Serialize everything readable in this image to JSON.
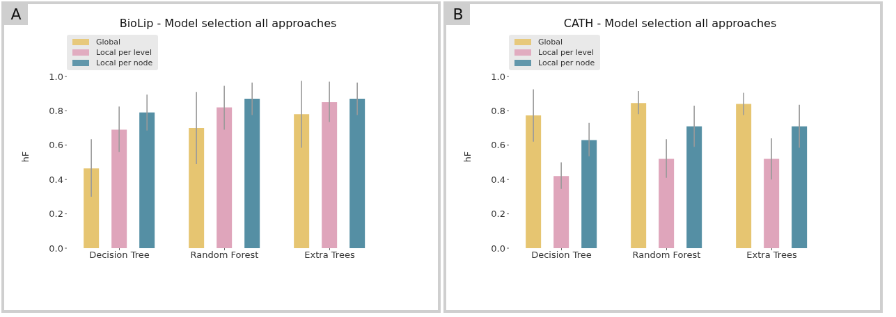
{
  "chart_data": [
    {
      "type": "bar",
      "title": "BioLip - Model selection all approaches",
      "ylabel": "hF",
      "annotations": [
        "A"
      ],
      "categories": [
        "Decision Tree",
        "Random Forest",
        "Extra Trees"
      ],
      "ylim": [
        0,
        1
      ],
      "yticks": [
        {
          "value": 0,
          "label": "0.0"
        },
        {
          "value": 0.2,
          "label": "0.2"
        },
        {
          "value": 0.4,
          "label": "0.4"
        },
        {
          "value": 0.6,
          "label": "0.6"
        },
        {
          "value": 0.8,
          "label": "0.8"
        },
        {
          "value": 1,
          "label": "1.0"
        }
      ],
      "grid": false,
      "legend": "top left",
      "series": [
        {
          "name": "Global",
          "color": "#e6c571",
          "values": [
            0.465,
            0.7,
            0.78
          ],
          "errors": [
            [
              0.3,
              0.635
            ],
            [
              0.49,
              0.91
            ],
            [
              0.585,
              0.975
            ]
          ]
        },
        {
          "name": "Local per level",
          "color": "#dfa5bb",
          "values": [
            0.69,
            0.82,
            0.85
          ],
          "errors": [
            [
              0.56,
              0.825
            ],
            [
              0.69,
              0.945
            ],
            [
              0.735,
              0.97
            ]
          ]
        },
        {
          "name": "Local per node",
          "color": "#558fa4",
          "values": [
            0.79,
            0.87,
            0.87
          ],
          "errors": [
            [
              0.685,
              0.895
            ],
            [
              0.775,
              0.965
            ],
            [
              0.775,
              0.965
            ]
          ]
        }
      ]
    },
    {
      "type": "bar",
      "title": "CATH - Model selection all approaches",
      "ylabel": "hF",
      "annotations": [
        "B"
      ],
      "categories": [
        "Decision Tree",
        "Random Forest",
        "Extra Trees"
      ],
      "ylim": [
        0,
        1
      ],
      "yticks": [
        {
          "value": 0,
          "label": "0.0"
        },
        {
          "value": 0.2,
          "label": "0.2"
        },
        {
          "value": 0.4,
          "label": "0.4"
        },
        {
          "value": 0.6,
          "label": "0.6"
        },
        {
          "value": 0.8,
          "label": "0.8"
        },
        {
          "value": 1,
          "label": "1.0"
        }
      ],
      "grid": false,
      "legend": "top left",
      "series": [
        {
          "name": "Global",
          "color": "#e6c571",
          "values": [
            0.773,
            0.845,
            0.84
          ],
          "errors": [
            [
              0.62,
              0.925
            ],
            [
              0.78,
              0.915
            ],
            [
              0.775,
              0.905
            ]
          ]
        },
        {
          "name": "Local per level",
          "color": "#dfa5bb",
          "values": [
            0.42,
            0.52,
            0.52
          ],
          "errors": [
            [
              0.345,
              0.5
            ],
            [
              0.41,
              0.635
            ],
            [
              0.4,
              0.64
            ]
          ]
        },
        {
          "name": "Local per node",
          "color": "#558fa4",
          "values": [
            0.63,
            0.71,
            0.71
          ],
          "errors": [
            [
              0.535,
              0.73
            ],
            [
              0.59,
              0.83
            ],
            [
              0.585,
              0.835
            ]
          ]
        }
      ]
    }
  ]
}
